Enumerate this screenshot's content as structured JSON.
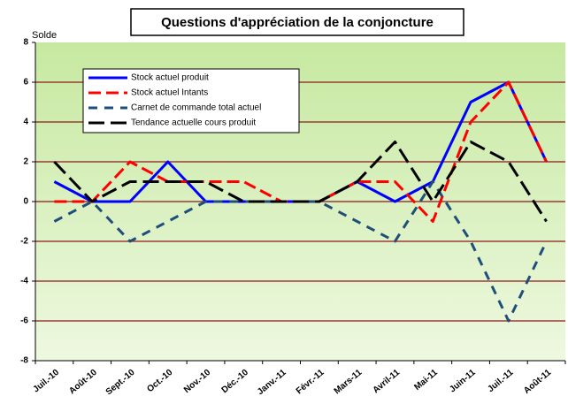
{
  "chart_data": {
    "type": "line",
    "title": "Questions d'appréciation de la conjoncture",
    "y_label": "Solde",
    "categories": [
      "Juil.-10",
      "Août-10",
      "Sept.-10",
      "Oct.-10",
      "Nov.-10",
      "Déc.-10",
      "Janv.-11",
      "Févr.-11",
      "Mars-11",
      "Avril-11",
      "Mai-11",
      "Juin-11",
      "Juil.-11",
      "Août-11"
    ],
    "series": [
      {
        "name": "Stock actuel produit",
        "color": "#0000ff",
        "values": [
          1,
          0,
          0,
          2,
          0,
          0,
          0,
          0,
          1,
          0,
          1,
          5,
          6,
          2
        ]
      },
      {
        "name": "Stock actuel Intants",
        "color": "#ff0000",
        "values": [
          0,
          0,
          2,
          1,
          1,
          1,
          0,
          0,
          1,
          1,
          -1,
          4,
          6,
          2
        ]
      },
      {
        "name": "Carnet de commande total actuel",
        "color": "#1f4e79",
        "values": [
          -1,
          0,
          -2,
          -1,
          0,
          0,
          0,
          0,
          -1,
          -2,
          1,
          -2,
          -6,
          -2
        ]
      },
      {
        "name": "Tendance actuelle cours produit",
        "color": "#000000",
        "values": [
          2,
          0,
          1,
          1,
          1,
          0,
          0,
          0,
          1,
          3,
          0,
          3,
          2,
          -1
        ]
      }
    ],
    "ylim": [
      -8,
      8
    ],
    "yticks": [
      -8,
      -6,
      -4,
      -2,
      0,
      2,
      4,
      6,
      8
    ],
    "grid": true
  }
}
